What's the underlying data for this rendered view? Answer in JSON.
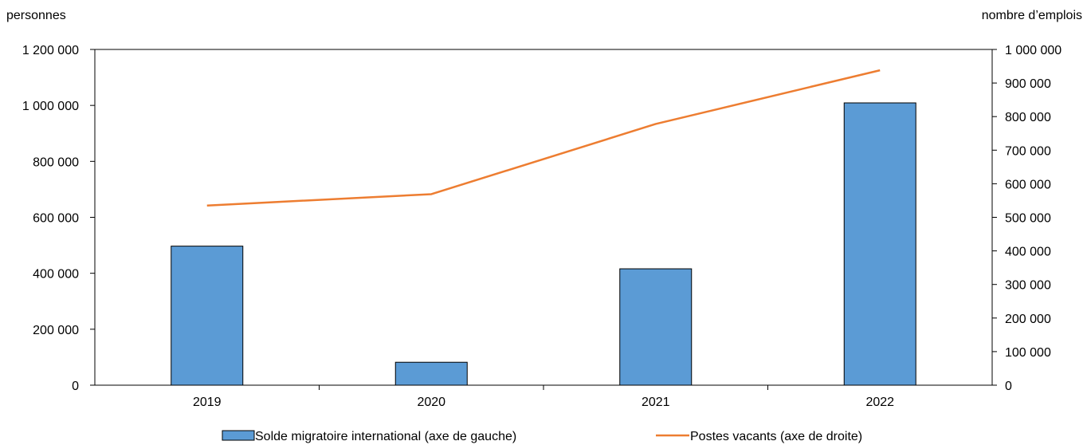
{
  "chart_data": {
    "type": "bar",
    "categories": [
      "2019",
      "2020",
      "2021",
      "2022"
    ],
    "left_axis": {
      "unit": "personnes",
      "range": [
        0,
        1200000
      ],
      "ticks": [
        "0",
        "200 000",
        "400 000",
        "600 000",
        "800 000",
        "1 000 000",
        "1 200 000"
      ]
    },
    "right_axis": {
      "unit": "nombre d’emplois",
      "range": [
        0,
        1000000
      ],
      "ticks": [
        "0",
        "100 000",
        "200 000",
        "300 000",
        "400 000",
        "500 000",
        "600 000",
        "700 000",
        "800 000",
        "900 000",
        "1 000 000"
      ]
    },
    "series": [
      {
        "name": "Solde migratoire international (axe de gauche)",
        "type": "bar",
        "axis": "left",
        "color": "#5b9bd5",
        "values": [
          497000,
          82000,
          416000,
          1009000
        ]
      },
      {
        "name": "Postes vacants (axe de droite)",
        "type": "line",
        "axis": "right",
        "color": "#ed7d31",
        "values": [
          535000,
          569000,
          778000,
          938000
        ]
      }
    ],
    "grid": false,
    "legend_position": "bottom"
  }
}
